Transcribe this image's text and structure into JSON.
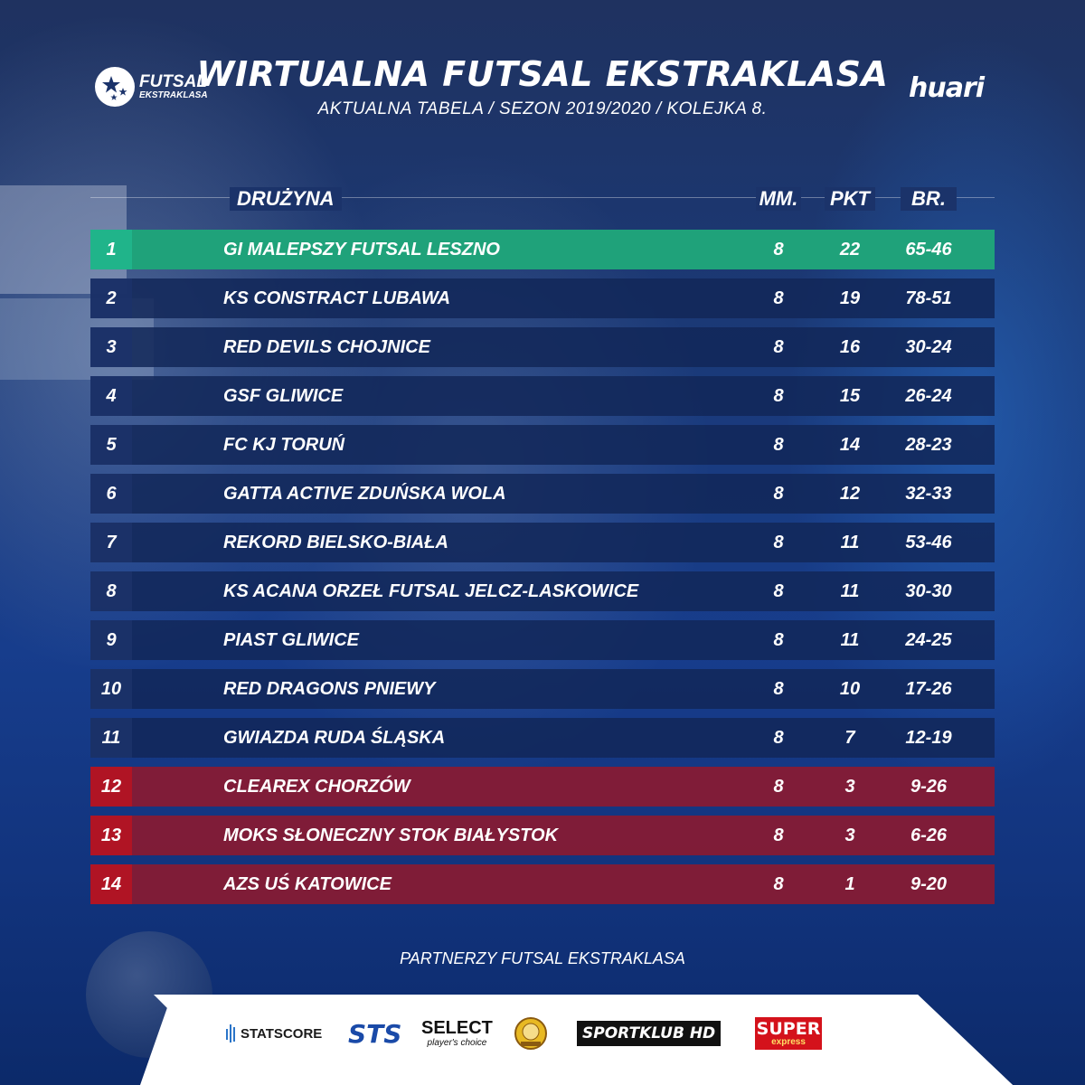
{
  "header": {
    "title": "WIRTUALNA FUTSAL EKSTRAKLASA",
    "subtitle": "AKTUALNA TABELA  /  SEZON 2019/2020  /  KOLEJKA 8."
  },
  "logos": {
    "left_line1": "FUTSAL",
    "left_line2": "EKSTRAKLASA",
    "right": "huari"
  },
  "columns": {
    "team": "DRUŻYNA",
    "mm": "MM.",
    "pkt": "PKT",
    "br": "BR."
  },
  "rows": [
    {
      "pos": "1",
      "team": "GI MALEPSZY FUTSAL LESZNO",
      "mm": "8",
      "pkt": "22",
      "br": "65-46",
      "status": "leader"
    },
    {
      "pos": "2",
      "team": "KS CONSTRACT LUBAWA",
      "mm": "8",
      "pkt": "19",
      "br": "78-51",
      "status": "normal"
    },
    {
      "pos": "3",
      "team": "RED DEVILS CHOJNICE",
      "mm": "8",
      "pkt": "16",
      "br": "30-24",
      "status": "normal"
    },
    {
      "pos": "4",
      "team": "GSF GLIWICE",
      "mm": "8",
      "pkt": "15",
      "br": "26-24",
      "status": "normal"
    },
    {
      "pos": "5",
      "team": "FC KJ TORUŃ",
      "mm": "8",
      "pkt": "14",
      "br": "28-23",
      "status": "normal"
    },
    {
      "pos": "6",
      "team": "GATTA ACTIVE ZDUŃSKA WOLA",
      "mm": "8",
      "pkt": "12",
      "br": "32-33",
      "status": "normal"
    },
    {
      "pos": "7",
      "team": "REKORD BIELSKO-BIAŁA",
      "mm": "8",
      "pkt": "11",
      "br": "53-46",
      "status": "normal"
    },
    {
      "pos": "8",
      "team": "KS ACANA ORZEŁ FUTSAL JELCZ-LASKOWICE",
      "mm": "8",
      "pkt": "11",
      "br": "30-30",
      "status": "normal"
    },
    {
      "pos": "9",
      "team": "PIAST GLIWICE",
      "mm": "8",
      "pkt": "11",
      "br": "24-25",
      "status": "normal"
    },
    {
      "pos": "10",
      "team": "RED DRAGONS PNIEWY",
      "mm": "8",
      "pkt": "10",
      "br": "17-26",
      "status": "normal"
    },
    {
      "pos": "11",
      "team": "GWIAZDA RUDA ŚLĄSKA",
      "mm": "8",
      "pkt": "7",
      "br": "12-19",
      "status": "normal"
    },
    {
      "pos": "12",
      "team": "CLEAREX CHORZÓW",
      "mm": "8",
      "pkt": "3",
      "br": "9-26",
      "status": "relegation"
    },
    {
      "pos": "13",
      "team": "MOKS SŁONECZNY STOK BIAŁYSTOK",
      "mm": "8",
      "pkt": "3",
      "br": "6-26",
      "status": "relegation"
    },
    {
      "pos": "14",
      "team": "AZS UŚ KATOWICE",
      "mm": "8",
      "pkt": "1",
      "br": "9-20",
      "status": "relegation"
    }
  ],
  "partners": {
    "label": "PARTNERZY FUTSAL EKSTRAKLASA",
    "statscore": "STATSCORE",
    "sts": "STS",
    "select_main": "SELECT",
    "select_sub": "player's choice",
    "sportklub": "SPORTKLUB HD",
    "super_main": "SUPER",
    "super_sub": "express"
  },
  "colors": {
    "leader": "#1fa27a",
    "relegation": "#8c1a30",
    "row": "#122758"
  }
}
